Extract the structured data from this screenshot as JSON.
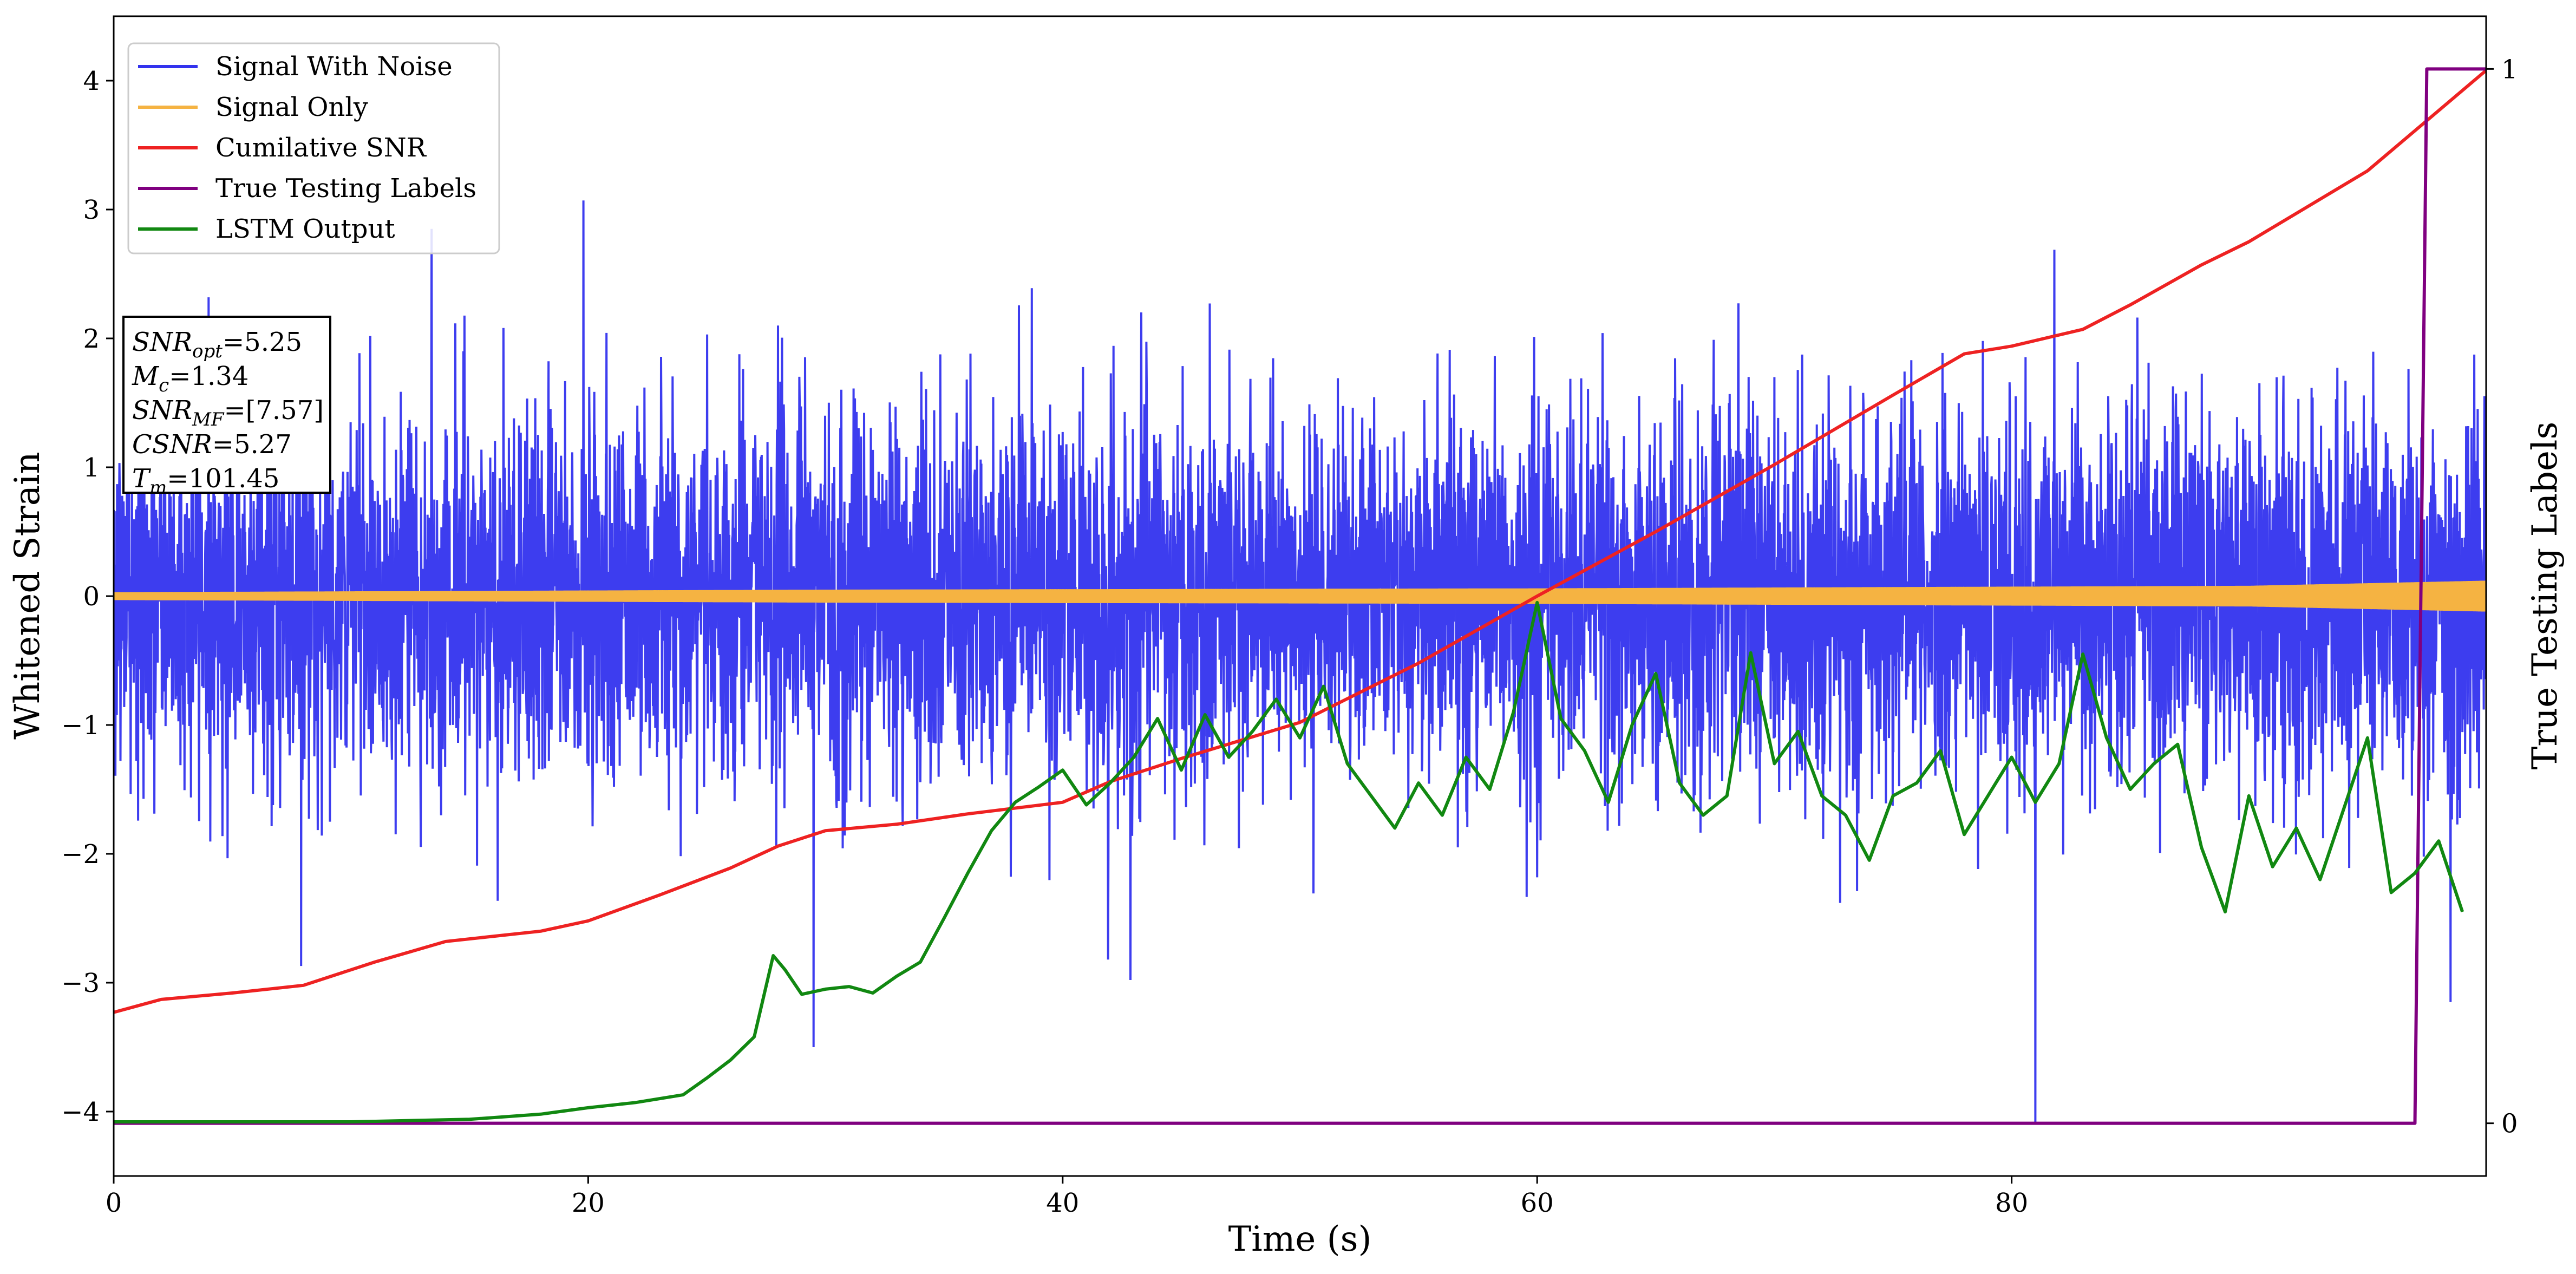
{
  "chart_data": {
    "type": "line",
    "xlabel": "Time (s)",
    "ylabel": "Whitened Strain",
    "y2label": "True Testing Labels",
    "xlim": [
      0,
      100
    ],
    "ylim": [
      -4.5,
      4.5
    ],
    "y2lim": [
      -0.05,
      1.05
    ],
    "xticks": [
      "0",
      "20",
      "40",
      "60",
      "80"
    ],
    "yticks": [
      "−4",
      "−3",
      "−2",
      "−1",
      "0",
      "1",
      "2",
      "3",
      "4"
    ],
    "y2ticks": [
      "0",
      "1"
    ],
    "grid": false,
    "legend_position": "upper-left",
    "legend": [
      {
        "label": "Signal With Noise",
        "color": "#3333ee"
      },
      {
        "label": "Signal Only",
        "color": "#f5b342"
      },
      {
        "label": "Cumilative SNR",
        "color": "#ee2222"
      },
      {
        "label": "True Testing Labels",
        "color": "#800080"
      },
      {
        "label": "LSTM Output",
        "color": "#118811"
      }
    ],
    "annotation": [
      {
        "base": "SNR",
        "sub": "opt",
        "value": "=5.25"
      },
      {
        "base": "M",
        "sub": "c",
        "value": "=1.34"
      },
      {
        "base": "SNR",
        "sub": "MF",
        "value": "=[7.57]"
      },
      {
        "base": "CSNR",
        "sub": "",
        "value": "=5.27"
      },
      {
        "base": "T",
        "sub": "m",
        "value": "=101.45"
      }
    ],
    "series": [
      {
        "name": "Signal With Noise",
        "color": "#3333ee",
        "kind": "noise",
        "noise_std": 0.72,
        "center": 0.0,
        "upper_envelope_approx": 2.0,
        "lower_envelope_approx": -2.0,
        "notable_extremes": [
          {
            "x": 19.8,
            "y": 3.07
          },
          {
            "x": 13.4,
            "y": 2.85
          },
          {
            "x": 29.5,
            "y": -3.5
          },
          {
            "x": 81.0,
            "y": -4.1
          },
          {
            "x": 7.9,
            "y": -2.87
          },
          {
            "x": 98.5,
            "y": -3.15
          }
        ]
      },
      {
        "name": "Signal Only",
        "color": "#f5b342",
        "kind": "band",
        "center": 0.0,
        "amplitude_points": [
          {
            "x": 0,
            "a": 0.03
          },
          {
            "x": 30,
            "a": 0.05
          },
          {
            "x": 60,
            "a": 0.06
          },
          {
            "x": 90,
            "a": 0.08
          },
          {
            "x": 100,
            "a": 0.12
          }
        ]
      },
      {
        "name": "Cumilative SNR",
        "color": "#ee2222",
        "axis": "left",
        "x": [
          0,
          2,
          5,
          8,
          11,
          14,
          18,
          20,
          23,
          26,
          28,
          30,
          33,
          36,
          40,
          42,
          45,
          50,
          55,
          60,
          65,
          70,
          75,
          78,
          80,
          83,
          85,
          88,
          90,
          95,
          100
        ],
        "y": [
          -3.23,
          -3.13,
          -3.08,
          -3.02,
          -2.84,
          -2.68,
          -2.6,
          -2.52,
          -2.32,
          -2.11,
          -1.94,
          -1.82,
          -1.77,
          -1.69,
          -1.6,
          -1.44,
          -1.26,
          -0.98,
          -0.52,
          0.0,
          0.5,
          1.02,
          1.56,
          1.88,
          1.94,
          2.07,
          2.26,
          2.57,
          2.75,
          3.3,
          4.08
        ]
      },
      {
        "name": "True Testing Labels",
        "color": "#800080",
        "axis": "right",
        "x": [
          0,
          97.0,
          97.5,
          100
        ],
        "y": [
          0,
          0,
          1,
          1
        ]
      },
      {
        "name": "LSTM Output",
        "color": "#118811",
        "axis": "left",
        "x": [
          0,
          10,
          15,
          18,
          20,
          22,
          24,
          25,
          26,
          27,
          27.8,
          28.3,
          29,
          30,
          31,
          32,
          33,
          34,
          35,
          36,
          37,
          38,
          39,
          40,
          41,
          42,
          43,
          44,
          45,
          46,
          47,
          48,
          49,
          50,
          51,
          52,
          53,
          54,
          55,
          56,
          57,
          58,
          59,
          60,
          61,
          62,
          63,
          64,
          65,
          66,
          67,
          68,
          69,
          70,
          71,
          72,
          73,
          74,
          75,
          76,
          77,
          78,
          79,
          80,
          81,
          82,
          83,
          84,
          85,
          86,
          87,
          88,
          89,
          90,
          91,
          92,
          93,
          94,
          95,
          96,
          97,
          98,
          99
        ],
        "y": [
          -4.08,
          -4.08,
          -4.06,
          -4.02,
          -3.97,
          -3.93,
          -3.87,
          -3.74,
          -3.6,
          -3.42,
          -2.79,
          -2.9,
          -3.09,
          -3.05,
          -3.03,
          -3.08,
          -2.95,
          -2.84,
          -2.5,
          -2.15,
          -1.82,
          -1.6,
          -1.48,
          -1.35,
          -1.62,
          -1.45,
          -1.25,
          -0.95,
          -1.35,
          -0.92,
          -1.25,
          -1.05,
          -0.8,
          -1.1,
          -0.7,
          -1.3,
          -1.55,
          -1.8,
          -1.45,
          -1.7,
          -1.25,
          -1.5,
          -0.9,
          -0.05,
          -0.95,
          -1.2,
          -1.6,
          -1.0,
          -0.6,
          -1.45,
          -1.7,
          -1.55,
          -0.44,
          -1.3,
          -1.05,
          -1.55,
          -1.7,
          -2.05,
          -1.55,
          -1.45,
          -1.2,
          -1.85,
          -1.55,
          -1.25,
          -1.6,
          -1.3,
          -0.45,
          -1.1,
          -1.5,
          -1.3,
          -1.15,
          -1.95,
          -2.45,
          -1.55,
          -2.1,
          -1.8,
          -2.2,
          -1.65,
          -1.1,
          -2.3,
          -2.15,
          -1.9,
          -2.45
        ]
      }
    ]
  }
}
